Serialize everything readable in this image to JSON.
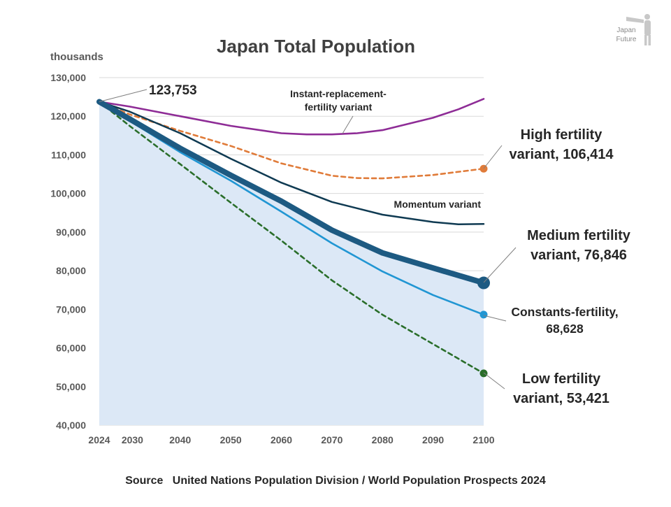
{
  "logo": {
    "line1": "Japan",
    "line2": "Future"
  },
  "source_text": "Source   United Nations Population Division / World Population Prospects 2024",
  "chart_data": {
    "type": "line",
    "title": "Japan Total Population",
    "ylabel": "thousands",
    "xlabel": "",
    "xlim": [
      2024,
      2100
    ],
    "ylim": [
      40000,
      130000
    ],
    "x_ticks": [
      2024,
      2030,
      2040,
      2050,
      2060,
      2070,
      2080,
      2090,
      2100
    ],
    "y_ticks": [
      40000,
      50000,
      60000,
      70000,
      80000,
      90000,
      100000,
      110000,
      120000,
      130000
    ],
    "y_tick_labels": [
      "40,000",
      "50,000",
      "60,000",
      "70,000",
      "80,000",
      "90,000",
      "100,000",
      "110,000",
      "120,000",
      "130,000"
    ],
    "grid": true,
    "start_label": "123,753",
    "series": [
      {
        "name": "Instant-replacement-fertility variant",
        "key": "instant",
        "color": "#8e2c96",
        "dash": false,
        "label_lines": [
          "Instant-replacement-",
          "fertility variant"
        ],
        "x": [
          2024,
          2030,
          2040,
          2050,
          2060,
          2065,
          2070,
          2075,
          2080,
          2090,
          2095,
          2100
        ],
        "values": [
          123753,
          122500,
          120000,
          117500,
          115600,
          115300,
          115300,
          115600,
          116400,
          119600,
          121800,
          124500
        ]
      },
      {
        "name": "High fertility variant",
        "key": "high",
        "color": "#e07b39",
        "dash": true,
        "end_marker": true,
        "label_lines": [
          "High fertility",
          "variant, 106,414"
        ],
        "x": [
          2024,
          2030,
          2040,
          2050,
          2060,
          2070,
          2075,
          2080,
          2090,
          2100
        ],
        "values": [
          123753,
          120500,
          116200,
          112300,
          107800,
          104600,
          104000,
          103900,
          104800,
          106414
        ]
      },
      {
        "name": "Momentum variant",
        "key": "momentum",
        "color": "#0f3a52",
        "dash": false,
        "label_lines": [
          "Momentum variant"
        ],
        "x": [
          2024,
          2030,
          2040,
          2050,
          2060,
          2070,
          2080,
          2090,
          2095,
          2100
        ],
        "values": [
          123753,
          121200,
          115600,
          109000,
          102800,
          97800,
          94500,
          92600,
          92000,
          92100
        ]
      },
      {
        "name": "Medium fertility variant",
        "key": "medium",
        "color": "#1d5a82",
        "dash": false,
        "thick": true,
        "end_marker": true,
        "label_lines": [
          "Medium fertility",
          "variant, 76,846"
        ],
        "x": [
          2024,
          2030,
          2040,
          2050,
          2060,
          2070,
          2080,
          2090,
          2100
        ],
        "values": [
          123753,
          119300,
          111700,
          104700,
          98000,
          90500,
          84600,
          80700,
          76846
        ]
      },
      {
        "name": "Constants-fertility",
        "key": "constant",
        "color": "#2196d3",
        "dash": false,
        "end_marker": true,
        "label_lines": [
          "Constants-fertility,",
          "68,628"
        ],
        "x": [
          2024,
          2030,
          2040,
          2050,
          2060,
          2070,
          2080,
          2090,
          2100
        ],
        "values": [
          123753,
          118800,
          110700,
          103300,
          95300,
          87100,
          79800,
          73700,
          68628
        ]
      },
      {
        "name": "Low fertility variant",
        "key": "low",
        "color": "#2a6e2a",
        "dash": true,
        "end_marker": true,
        "label_lines": [
          "Low fertility",
          "variant, 53,421"
        ],
        "x": [
          2024,
          2030,
          2040,
          2050,
          2060,
          2070,
          2080,
          2090,
          2100
        ],
        "values": [
          123753,
          117500,
          107600,
          97600,
          87800,
          77500,
          68600,
          61000,
          53421
        ]
      }
    ]
  }
}
